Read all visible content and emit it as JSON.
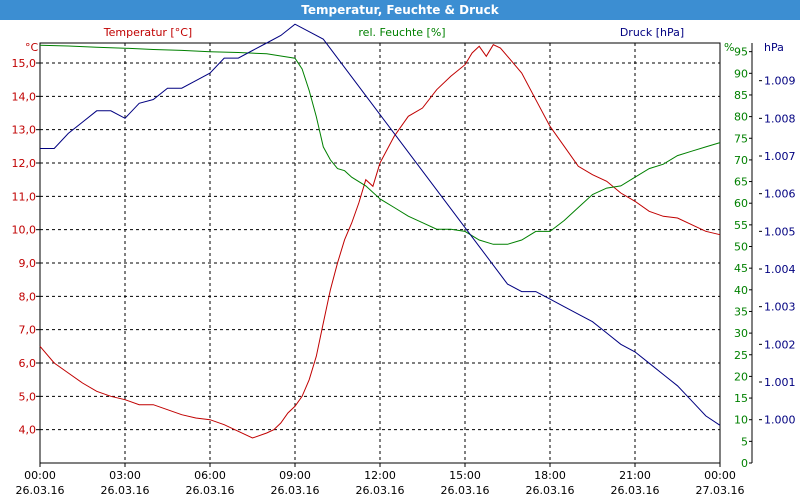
{
  "window": {
    "title": "Temperatur, Feuchte & Druck"
  },
  "chart_data": {
    "type": "line",
    "title": "Temperatur, Feuchte & Druck",
    "grid": true,
    "x_ticks": [
      {
        "t": 0,
        "time": "00:00",
        "date": "26.03.16"
      },
      {
        "t": 3,
        "time": "03:00",
        "date": "26.03.16"
      },
      {
        "t": 6,
        "time": "06:00",
        "date": "26.03.16"
      },
      {
        "t": 9,
        "time": "09:00",
        "date": "26.03.16"
      },
      {
        "t": 12,
        "time": "12:00",
        "date": "26.03.16"
      },
      {
        "t": 15,
        "time": "15:00",
        "date": "26.03.16"
      },
      {
        "t": 18,
        "time": "18:00",
        "date": "26.03.16"
      },
      {
        "t": 21,
        "time": "21:00",
        "date": "26.03.16"
      },
      {
        "t": 24,
        "time": "00:00",
        "date": "27.03.16"
      }
    ],
    "axes": {
      "temperature": {
        "label": "Temperatur [°C]",
        "unit": "°C",
        "color": "#c00000",
        "min": 3.0,
        "max": 15.6,
        "ticks": [
          "4,0",
          "5,0",
          "6,0",
          "7,0",
          "8,0",
          "9,0",
          "10,0",
          "11,0",
          "12,0",
          "13,0",
          "14,0",
          "15,0"
        ]
      },
      "humidity": {
        "label": "rel. Feuchte [%]",
        "unit": "%",
        "color": "#008000",
        "min": 0,
        "max": 97,
        "ticks": [
          "0",
          "5",
          "10",
          "15",
          "20",
          "25",
          "30",
          "35",
          "40",
          "45",
          "50",
          "55",
          "60",
          "65",
          "70",
          "75",
          "80",
          "85",
          "90",
          "95"
        ]
      },
      "pressure": {
        "label": "Druck [hPa]",
        "unit": "hPa",
        "color": "#000080",
        "min": 0.99885,
        "max": 1.01,
        "ticks": [
          "1.000",
          "1.001",
          "1.002",
          "1.003",
          "1.004",
          "1.005",
          "1.006",
          "1.007",
          "1.008",
          "1.009"
        ]
      }
    },
    "series": [
      {
        "name": "Temperatur [°C]",
        "color": "#c00000",
        "axis": "temperature",
        "x": [
          0,
          0.5,
          1,
          1.5,
          2,
          2.5,
          3,
          3.5,
          4,
          4.5,
          5,
          5.5,
          6,
          6.5,
          7,
          7.5,
          8,
          8.25,
          8.5,
          8.75,
          9,
          9.25,
          9.5,
          9.75,
          10,
          10.25,
          10.5,
          10.75,
          11,
          11.25,
          11.5,
          11.75,
          12,
          12.5,
          13,
          13.5,
          14,
          14.5,
          15,
          15.25,
          15.5,
          15.75,
          16,
          16.25,
          16.5,
          17,
          17.5,
          18,
          18.5,
          19,
          19.5,
          20,
          20.5,
          21,
          21.5,
          22,
          22.5,
          23,
          23.5,
          24
        ],
        "y": [
          6.5,
          6.0,
          5.7,
          5.4,
          5.15,
          5.0,
          4.9,
          4.75,
          4.75,
          4.6,
          4.45,
          4.35,
          4.3,
          4.15,
          3.95,
          3.75,
          3.9,
          4.0,
          4.2,
          4.5,
          4.7,
          5.0,
          5.5,
          6.2,
          7.2,
          8.2,
          9.0,
          9.7,
          10.2,
          10.8,
          11.5,
          11.3,
          12.0,
          12.8,
          13.4,
          13.65,
          14.2,
          14.6,
          14.95,
          15.3,
          15.5,
          15.2,
          15.55,
          15.45,
          15.2,
          14.7,
          13.9,
          13.1,
          12.5,
          11.9,
          11.65,
          11.45,
          11.1,
          10.85,
          10.55,
          10.4,
          10.35,
          10.15,
          9.95,
          9.85
        ]
      },
      {
        "name": "rel. Feuchte [%]",
        "color": "#008000",
        "axis": "humidity",
        "x": [
          0,
          1,
          2,
          3,
          4,
          5,
          6,
          7,
          8,
          8.5,
          9,
          9.25,
          9.5,
          9.75,
          10,
          10.25,
          10.5,
          10.75,
          11,
          11.5,
          12,
          12.5,
          13,
          13.5,
          14,
          14.5,
          15,
          15.5,
          16,
          16.5,
          17,
          17.5,
          18,
          18.5,
          19,
          19.5,
          20,
          20.5,
          21,
          21.5,
          22,
          22.5,
          23,
          23.5,
          24
        ],
        "y": [
          96.5,
          96.3,
          96.0,
          95.8,
          95.5,
          95.3,
          95.0,
          94.8,
          94.5,
          94.0,
          93.5,
          91,
          86,
          80,
          73,
          70,
          68,
          67.5,
          66,
          64,
          61,
          59,
          57,
          55.5,
          54,
          54.0,
          53.5,
          51.5,
          50.5,
          50.5,
          51.5,
          53.5,
          53.5,
          56,
          59,
          62,
          63.5,
          64,
          66,
          68,
          69,
          71,
          72,
          73,
          74
        ]
      },
      {
        "name": "Druck [hPa]",
        "color": "#000080",
        "axis": "pressure",
        "x": [
          0,
          0.5,
          1,
          1.5,
          2,
          2.5,
          3,
          3.5,
          4,
          4.5,
          5,
          5.5,
          6,
          6.5,
          7,
          7.5,
          8,
          8.5,
          9,
          9.5,
          10,
          10.5,
          11,
          11.5,
          12,
          12.5,
          13,
          13.5,
          14,
          14.5,
          15,
          15.5,
          16,
          16.5,
          17,
          17.5,
          18,
          18.5,
          19,
          19.5,
          20,
          20.5,
          21,
          21.5,
          22,
          22.5,
          23,
          23.5,
          24
        ],
        "y": [
          1.0072,
          1.0072,
          1.0076,
          1.0079,
          1.0082,
          1.0082,
          1.008,
          1.0084,
          1.0085,
          1.0088,
          1.0088,
          1.009,
          1.0092,
          1.0096,
          1.0096,
          1.0098,
          1.01,
          1.0102,
          1.0105,
          1.0103,
          1.0101,
          1.0096,
          1.0091,
          1.0086,
          1.0081,
          1.0076,
          1.0071,
          1.0066,
          1.0061,
          1.0056,
          1.0051,
          1.0046,
          1.0041,
          1.0036,
          1.0034,
          1.0034,
          1.0032,
          1.003,
          1.0028,
          1.0026,
          1.0023,
          1.002,
          1.0018,
          1.0015,
          1.0012,
          1.0009,
          1.0005,
          1.0001,
          0.99985
        ]
      }
    ]
  }
}
